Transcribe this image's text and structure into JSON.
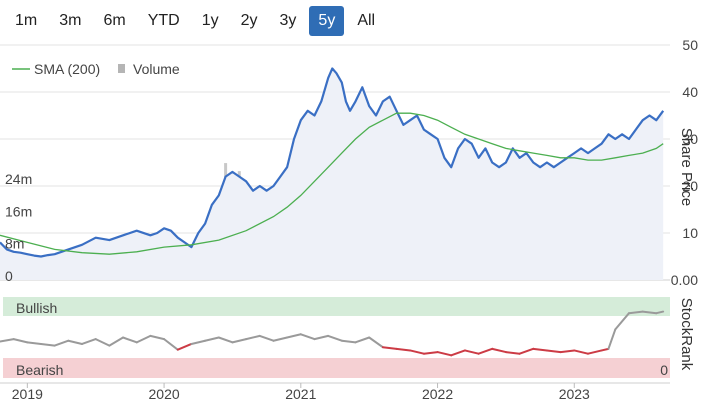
{
  "range_buttons": [
    {
      "label": "1m",
      "active": false
    },
    {
      "label": "3m",
      "active": false
    },
    {
      "label": "6m",
      "active": false
    },
    {
      "label": "YTD",
      "active": false
    },
    {
      "label": "1y",
      "active": false
    },
    {
      "label": "2y",
      "active": false
    },
    {
      "label": "3y",
      "active": false
    },
    {
      "label": "5y",
      "active": true
    },
    {
      "label": "All",
      "active": false
    }
  ],
  "colors": {
    "price": "#3a6fc4",
    "price_fill": "#eef1f8",
    "sma": "#4caf50",
    "volume": "#c8c8c8",
    "bullish_bg": "#d5ecd9",
    "bearish_bg": "#f5d0d3",
    "bullish_line": "#9a9a9a",
    "bearish_line": "#cc3b45",
    "active_button": "#2f6db5"
  },
  "chart_data": [
    {
      "type": "line",
      "legend": [
        "SMA (200)",
        "Volume"
      ],
      "legend_position": "top-left",
      "ylabel": "Share Price",
      "ylim": [
        0,
        50
      ],
      "yticks": [
        "50",
        "40",
        "30",
        "20",
        "10",
        "0.00"
      ],
      "volume_ticks": [
        "24m",
        "16m",
        "8m",
        "0"
      ],
      "volume_ylim": [
        0,
        30
      ],
      "xlim": [
        2018.8,
        2023.7
      ],
      "xticks": [
        "2019",
        "2020",
        "2021",
        "2022",
        "2023"
      ],
      "xtick_values": [
        2019,
        2020,
        2021,
        2022,
        2023
      ],
      "series": [
        {
          "name": "Share Price",
          "kind": "price",
          "x": [
            2018.8,
            2018.85,
            2018.9,
            2018.95,
            2019.0,
            2019.05,
            2019.1,
            2019.15,
            2019.2,
            2019.3,
            2019.4,
            2019.5,
            2019.6,
            2019.7,
            2019.8,
            2019.9,
            2019.95,
            2020.0,
            2020.05,
            2020.1,
            2020.15,
            2020.2,
            2020.25,
            2020.3,
            2020.35,
            2020.4,
            2020.45,
            2020.5,
            2020.55,
            2020.6,
            2020.65,
            2020.7,
            2020.75,
            2020.8,
            2020.85,
            2020.9,
            2020.95,
            2021.0,
            2021.05,
            2021.1,
            2021.15,
            2021.2,
            2021.23,
            2021.26,
            2021.3,
            2021.33,
            2021.36,
            2021.4,
            2021.45,
            2021.5,
            2021.55,
            2021.6,
            2021.65,
            2021.7,
            2021.75,
            2021.8,
            2021.85,
            2021.9,
            2021.95,
            2022.0,
            2022.05,
            2022.1,
            2022.15,
            2022.2,
            2022.25,
            2022.3,
            2022.35,
            2022.4,
            2022.45,
            2022.5,
            2022.55,
            2022.6,
            2022.65,
            2022.7,
            2022.75,
            2022.8,
            2022.85,
            2022.9,
            2022.95,
            2023.0,
            2023.05,
            2023.1,
            2023.15,
            2023.2,
            2023.25,
            2023.3,
            2023.35,
            2023.4,
            2023.45,
            2023.5,
            2023.55,
            2023.6,
            2023.65
          ],
          "values": [
            8.0,
            6.5,
            6.0,
            5.8,
            5.5,
            5.2,
            5.0,
            5.3,
            5.5,
            6.5,
            7.5,
            9.0,
            8.5,
            9.5,
            10.5,
            9.5,
            10.0,
            11.0,
            10.5,
            9.0,
            8.0,
            7.0,
            10.0,
            12.0,
            16.0,
            18.0,
            22.0,
            23.0,
            22.0,
            21.0,
            19.0,
            20.0,
            19.0,
            20.0,
            22.0,
            24.0,
            30.0,
            34.0,
            36.0,
            35.0,
            38.0,
            43.0,
            45.0,
            44.0,
            42.0,
            38.0,
            36.0,
            38.0,
            41.0,
            37.0,
            35.0,
            38.0,
            39.0,
            36.0,
            33.0,
            34.0,
            35.0,
            32.0,
            31.0,
            30.0,
            26.0,
            24.0,
            28.0,
            30.0,
            29.0,
            26.0,
            28.0,
            25.0,
            24.0,
            25.0,
            28.0,
            26.0,
            27.0,
            25.0,
            24.0,
            25.0,
            24.0,
            25.0,
            26.0,
            27.0,
            28.0,
            27.0,
            28.0,
            29.0,
            31.0,
            30.0,
            31.0,
            30.0,
            32.0,
            34.0,
            35.0,
            34.0,
            36.0
          ]
        },
        {
          "name": "SMA (200)",
          "kind": "sma",
          "x": [
            2018.8,
            2019.0,
            2019.2,
            2019.4,
            2019.6,
            2019.8,
            2020.0,
            2020.2,
            2020.4,
            2020.6,
            2020.8,
            2020.9,
            2021.0,
            2021.1,
            2021.2,
            2021.3,
            2021.4,
            2021.5,
            2021.6,
            2021.7,
            2021.8,
            2021.9,
            2022.0,
            2022.1,
            2022.2,
            2022.3,
            2022.4,
            2022.5,
            2022.6,
            2022.7,
            2022.8,
            2022.9,
            2023.0,
            2023.1,
            2023.2,
            2023.3,
            2023.4,
            2023.5,
            2023.6,
            2023.65
          ],
          "values": [
            9.5,
            8.0,
            6.5,
            5.8,
            5.5,
            6.0,
            7.0,
            7.5,
            8.5,
            10.5,
            13.5,
            15.5,
            18.0,
            21.0,
            24.0,
            27.0,
            30.0,
            32.5,
            34.0,
            35.5,
            35.5,
            35.0,
            34.0,
            32.5,
            31.0,
            30.0,
            29.0,
            28.0,
            27.5,
            27.0,
            26.5,
            26.0,
            26.0,
            25.5,
            25.5,
            26.0,
            26.5,
            27.0,
            28.0,
            29.0
          ]
        },
        {
          "name": "Volume",
          "kind": "volume",
          "x": [
            2018.85,
            2018.95,
            2019.05,
            2019.15,
            2019.25,
            2019.35,
            2019.45,
            2019.55,
            2019.65,
            2019.75,
            2019.85,
            2019.95,
            2020.05,
            2020.15,
            2020.2,
            2020.25,
            2020.3,
            2020.35,
            2020.4,
            2020.45,
            2020.5,
            2020.55,
            2020.6,
            2020.65,
            2020.7,
            2020.75,
            2020.8,
            2020.85,
            2020.9,
            2020.95,
            2021.0,
            2021.05,
            2021.1,
            2021.15,
            2021.2,
            2021.25,
            2021.3,
            2021.35,
            2021.4,
            2021.45,
            2021.5,
            2021.55,
            2021.6,
            2021.65,
            2021.7,
            2021.75,
            2021.8,
            2021.85,
            2021.9,
            2021.95,
            2022.0,
            2022.05,
            2022.1,
            2022.15,
            2022.2,
            2022.25,
            2022.3,
            2022.35,
            2022.4,
            2022.45,
            2022.5,
            2022.55,
            2022.6,
            2022.65,
            2022.7,
            2022.75,
            2022.8,
            2022.85,
            2022.9,
            2022.95,
            2023.0,
            2023.05,
            2023.1,
            2023.15,
            2023.2,
            2023.25,
            2023.3,
            2023.35,
            2023.4,
            2023.45,
            2023.5,
            2023.55,
            2023.6
          ],
          "values": [
            2,
            3,
            2,
            2,
            1,
            2,
            3,
            2,
            2,
            1,
            2,
            3,
            4,
            6,
            5,
            3,
            8,
            10,
            9,
            28,
            24,
            26,
            18,
            14,
            20,
            16,
            12,
            18,
            22,
            24,
            16,
            14,
            12,
            10,
            20,
            18,
            14,
            16,
            12,
            18,
            20,
            16,
            14,
            12,
            14,
            10,
            12,
            8,
            10,
            9,
            8,
            7,
            6,
            10,
            8,
            6,
            7,
            9,
            5,
            6,
            8,
            5,
            7,
            4,
            6,
            5,
            4,
            6,
            8,
            5,
            4,
            5,
            3,
            4,
            6,
            5,
            4,
            3,
            5,
            6,
            4,
            3,
            5
          ]
        }
      ]
    },
    {
      "type": "line",
      "ylabel": "StockRank",
      "ylim": [
        0,
        100
      ],
      "ytick": "0",
      "zones": [
        "Bullish",
        "Bearish"
      ],
      "xlim": [
        2018.8,
        2023.7
      ],
      "series": [
        {
          "name": "StockRank",
          "x": [
            2018.8,
            2018.9,
            2019.0,
            2019.1,
            2019.2,
            2019.3,
            2019.4,
            2019.5,
            2019.6,
            2019.7,
            2019.8,
            2019.9,
            2020.0,
            2020.1,
            2020.2,
            2020.3,
            2020.4,
            2020.5,
            2020.6,
            2020.7,
            2020.8,
            2020.9,
            2021.0,
            2021.1,
            2021.2,
            2021.3,
            2021.4,
            2021.5,
            2021.6,
            2021.7,
            2021.8,
            2021.9,
            2022.0,
            2022.1,
            2022.2,
            2022.3,
            2022.4,
            2022.5,
            2022.6,
            2022.7,
            2022.8,
            2022.9,
            2023.0,
            2023.1,
            2023.2,
            2023.25,
            2023.3,
            2023.4,
            2023.5,
            2023.6,
            2023.65
          ],
          "values": [
            45,
            48,
            44,
            42,
            40,
            46,
            42,
            48,
            40,
            50,
            44,
            52,
            48,
            35,
            42,
            46,
            50,
            44,
            48,
            52,
            46,
            50,
            54,
            48,
            52,
            46,
            44,
            50,
            38,
            36,
            34,
            30,
            32,
            28,
            34,
            30,
            36,
            32,
            30,
            36,
            34,
            32,
            34,
            30,
            34,
            36,
            60,
            80,
            82,
            80,
            82
          ]
        }
      ]
    }
  ]
}
